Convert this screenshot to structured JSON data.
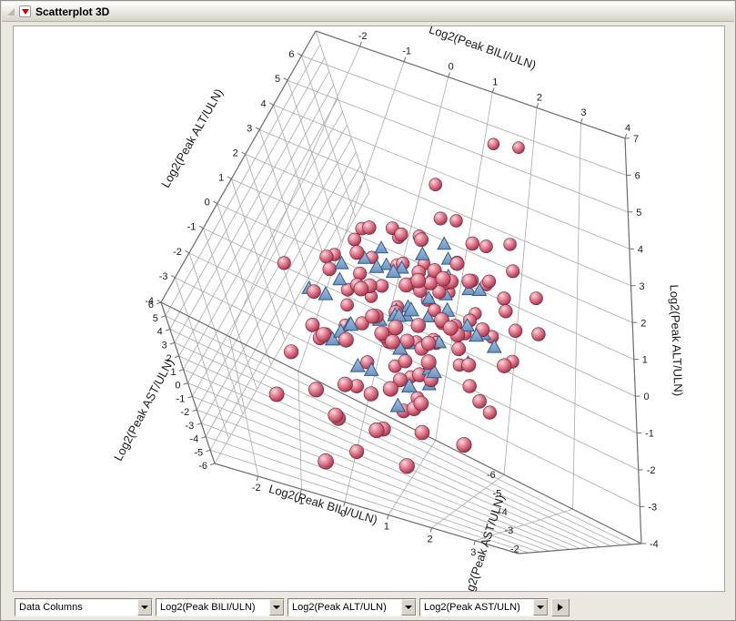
{
  "app": {
    "title": "Scatterplot 3D"
  },
  "controls": {
    "data_columns_label": "Data Columns",
    "x_select": "Log2(Peak BILI/ULN)",
    "y_select": "Log2(Peak ALT/ULN)",
    "z_select": "Log2(Peak AST/ULN)",
    "advance_icon": "right-arrow-icon",
    "dropdown_icon": "chevron-down-icon"
  },
  "colors": {
    "sphere": "#c95d72",
    "triangle": "#7da0c8",
    "grid": "#a9a9a9",
    "edge": "#6e6e6e",
    "accent_red": "#cc0000",
    "window_bg": "#ebe8e1"
  },
  "chart_data": {
    "type": "scatter",
    "subtype": "scatter3d",
    "axes": {
      "bili": {
        "label": "Log2(Peak BILI/ULN)",
        "range": [
          -3,
          4
        ],
        "ticks_top": [
          "-2",
          "-1",
          "0",
          "1",
          "2",
          "3",
          "4"
        ],
        "ticks_bottom": [
          "-2",
          "-1",
          "0",
          "1",
          "2",
          "3"
        ]
      },
      "alt": {
        "label": "Log2(Peak ALT/ULN)",
        "range": [
          -4,
          7
        ],
        "ticks_left": [
          "6",
          "5",
          "4",
          "3",
          "2",
          "1",
          "0",
          "-1",
          "-2",
          "-3",
          "-4"
        ],
        "ticks_right": [
          "7",
          "6",
          "5",
          "4",
          "3",
          "2",
          "1",
          "0",
          "-1",
          "-2",
          "-3",
          "-4"
        ]
      },
      "ast": {
        "label": "Log2(Peak AST/ULN)",
        "range": [
          -6,
          6
        ],
        "ticks_left": [
          "6",
          "5",
          "4",
          "3",
          "2",
          "1",
          "0",
          "-1",
          "-2",
          "-3",
          "-4",
          "-5",
          "-6"
        ],
        "ticks_bottom_right": [
          "-6",
          "-5",
          "-4",
          "-3",
          "-2"
        ]
      }
    },
    "grid": true,
    "series": [
      {
        "name": "spheres",
        "marker": "sphere",
        "color": "#c95d72",
        "points": [
          [
            -0.3,
            0.8,
            -1.2
          ],
          [
            0.5,
            1.6,
            0.4
          ],
          [
            1.2,
            -0.4,
            -2.1
          ],
          [
            -1.1,
            2.2,
            1.5
          ],
          [
            0.8,
            0.1,
            -0.6
          ],
          [
            1.6,
            1.1,
            0.9
          ],
          [
            -0.6,
            -1.2,
            -2.8
          ],
          [
            0.2,
            2.8,
            2.2
          ],
          [
            1.0,
            0.6,
            -1.8
          ],
          [
            -1.5,
            1.4,
            0.2
          ],
          [
            0.4,
            -0.8,
            -3.2
          ],
          [
            1.9,
            2.4,
            1.1
          ],
          [
            -0.2,
            3.1,
            0.6
          ],
          [
            0.9,
            -1.6,
            -1.4
          ],
          [
            1.4,
            0.3,
            2.6
          ],
          [
            -0.9,
            1.9,
            -2.4
          ],
          [
            0.1,
            0.5,
            1.8
          ],
          [
            2.1,
            1.3,
            -0.9
          ],
          [
            -1.3,
            -0.5,
            -1.1
          ],
          [
            0.7,
            2.0,
            0.1
          ],
          [
            1.1,
            -1.1,
            -2.6
          ],
          [
            -0.4,
            0.2,
            2.9
          ],
          [
            1.7,
            3.3,
            1.6
          ],
          [
            0.3,
            -2.1,
            -3.6
          ],
          [
            -0.8,
            1.0,
            0.8
          ],
          [
            1.3,
            2.6,
            -1.6
          ],
          [
            0.6,
            -0.2,
            1.2
          ],
          [
            -1.7,
            0.7,
            -0.4
          ],
          [
            2.4,
            1.8,
            0.5
          ],
          [
            0.0,
            -1.4,
            -2.2
          ],
          [
            0.9,
            3.6,
            2.4
          ],
          [
            -0.5,
            -2.6,
            -1.9
          ],
          [
            1.5,
            0.9,
            3.1
          ],
          [
            0.2,
            1.2,
            -3.4
          ],
          [
            -1.0,
            2.5,
            1.9
          ],
          [
            1.8,
            -0.7,
            0.3
          ],
          [
            0.5,
            0.4,
            -1.5
          ],
          [
            -0.1,
            1.7,
            2.1
          ],
          [
            1.2,
            2.9,
            -2.9
          ],
          [
            0.8,
            -1.9,
            1.4
          ],
          [
            -1.4,
            0.1,
            -2.5
          ],
          [
            2.0,
            0.7,
            1.7
          ],
          [
            0.4,
            2.3,
            -0.2
          ],
          [
            -0.7,
            -0.9,
            2.5
          ],
          [
            1.6,
            1.5,
            -3.1
          ],
          [
            0.1,
            -0.3,
            0.9
          ],
          [
            -1.2,
            2.7,
            -1.3
          ],
          [
            2.2,
            -1.3,
            0.6
          ],
          [
            0.6,
            0.8,
            2.8
          ],
          [
            -0.3,
            -1.7,
            -0.8
          ],
          [
            1.0,
            1.9,
            1.3
          ],
          [
            0.3,
            3.4,
            -0.5
          ],
          [
            -0.9,
            0.3,
            -3.0
          ],
          [
            1.4,
            -0.6,
            2.2
          ],
          [
            0.7,
            1.1,
            -2.0
          ],
          [
            -1.6,
            1.6,
            0.7
          ],
          [
            1.9,
            0.2,
            -1.2
          ],
          [
            0.0,
            2.1,
            1.0
          ],
          [
            -0.6,
            -2.3,
            -2.7
          ],
          [
            1.1,
            0.9,
            0.2
          ],
          [
            0.5,
            -1.0,
            -0.9
          ],
          [
            -0.2,
            2.4,
            2.7
          ],
          [
            1.7,
            1.2,
            -2.3
          ],
          [
            0.9,
            0.0,
            1.5
          ],
          [
            -1.1,
            -0.8,
            0.4
          ],
          [
            1.3,
            3.0,
            -0.7
          ],
          [
            0.2,
            0.6,
            -2.9
          ],
          [
            -0.8,
            1.3,
            1.1
          ],
          [
            2.3,
            2.1,
            0.8
          ],
          [
            0.6,
            -1.5,
            2.0
          ],
          [
            -0.4,
            0.9,
            -1.7
          ],
          [
            1.5,
            2.2,
            1.4
          ],
          [
            0.1,
            -0.1,
            -0.3
          ],
          [
            -1.8,
            -1.1,
            -1.6
          ],
          [
            1.0,
            1.4,
            2.3
          ],
          [
            0.8,
            2.7,
            -1.1
          ],
          [
            -0.5,
            0.0,
            0.3
          ],
          [
            1.2,
            -2.0,
            -2.4
          ],
          [
            0.4,
            1.8,
            3.0
          ],
          [
            -1.0,
            3.2,
            0.0
          ],
          [
            1.6,
            0.5,
            -0.8
          ],
          [
            0.3,
            -1.3,
            1.7
          ],
          [
            -0.7,
            2.0,
            -2.2
          ],
          [
            2.5,
            0.3,
            1.2
          ],
          [
            0.0,
            0.2,
            -1.0
          ],
          [
            0.9,
            1.7,
            0.6
          ],
          [
            -1.3,
            1.2,
            2.4
          ],
          [
            1.8,
            2.8,
            -1.9
          ],
          [
            0.5,
            -0.6,
            0.0
          ],
          [
            -0.1,
            0.7,
            -2.6
          ],
          [
            1.1,
            2.5,
            1.8
          ],
          [
            0.7,
            -1.8,
            -1.3
          ],
          [
            -0.9,
            0.5,
            1.6
          ],
          [
            1.4,
            1.0,
            -0.1
          ],
          [
            0.2,
            2.2,
            -1.8
          ],
          [
            -0.6,
            1.5,
            2.6
          ],
          [
            2.1,
            -0.9,
            -0.4
          ],
          [
            0.8,
            0.8,
            1.9
          ],
          [
            -0.2,
            -1.2,
            0.5
          ],
          [
            1.3,
            1.6,
            -2.7
          ],
          [
            0.6,
            3.8,
            1.2
          ],
          [
            -1.5,
            -0.3,
            -0.7
          ],
          [
            1.0,
            0.1,
            0.8
          ],
          [
            0.4,
            -2.4,
            -2.0
          ],
          [
            -0.3,
            1.1,
            1.3
          ],
          [
            1.7,
            2.0,
            2.5
          ],
          [
            0.1,
            0.9,
            -0.4
          ],
          [
            -1.2,
            -1.5,
            -3.3
          ],
          [
            2.7,
            1.4,
            0.1
          ],
          [
            0.5,
            2.6,
            -2.5
          ],
          [
            -0.8,
            -0.1,
            2.0
          ],
          [
            1.5,
            3.5,
            0.4
          ],
          [
            0.9,
            -0.5,
            -1.5
          ],
          [
            -0.4,
            2.9,
            1.7
          ],
          [
            1.2,
            0.4,
            -3.5
          ],
          [
            0.3,
            1.3,
            2.2
          ],
          [
            2.4,
            2.9,
            1.2
          ],
          [
            2.1,
            3.4,
            2.6
          ],
          [
            1.3,
            5.8,
            4.5
          ],
          [
            1.9,
            6.0,
            4.2
          ],
          [
            0.3,
            4.6,
            2.0
          ],
          [
            2.8,
            0.6,
            -1.8
          ],
          [
            3.2,
            1.5,
            0.2
          ],
          [
            -2.3,
            0.8,
            1.0
          ],
          [
            -0.6,
            -3.3,
            -4.6
          ],
          [
            1.1,
            -2.8,
            -4.0
          ],
          [
            2.2,
            -1.8,
            -3.2
          ],
          [
            -1.9,
            -2.2,
            -2.9
          ],
          [
            0.0,
            -3.6,
            -1.2
          ],
          [
            2.9,
            2.3,
            1.5
          ]
        ]
      },
      {
        "name": "triangles",
        "marker": "triangle",
        "color": "#7da0c8",
        "points": [
          [
            -0.2,
            0.6,
            -0.8
          ],
          [
            0.7,
            1.4,
            0.6
          ],
          [
            1.1,
            -0.2,
            -1.7
          ],
          [
            -0.8,
            1.8,
            1.2
          ],
          [
            0.4,
            0.3,
            -2.3
          ],
          [
            1.5,
            2.0,
            0.9
          ],
          [
            -0.4,
            -0.9,
            -1.4
          ],
          [
            0.9,
            2.5,
            1.8
          ],
          [
            0.1,
            0.9,
            -0.2
          ],
          [
            -1.2,
            1.1,
            0.4
          ],
          [
            1.3,
            0.0,
            -2.8
          ],
          [
            0.6,
            1.7,
            2.1
          ],
          [
            -0.6,
            2.3,
            -1.0
          ],
          [
            1.0,
            -1.2,
            0.7
          ],
          [
            0.3,
            0.7,
            1.5
          ],
          [
            -1.0,
            0.2,
            -2.0
          ],
          [
            1.7,
            1.2,
            -0.5
          ],
          [
            0.0,
            2.0,
            0.8
          ],
          [
            0.8,
            -0.6,
            -3.0
          ],
          [
            -0.3,
            1.5,
            2.4
          ],
          [
            1.2,
            2.7,
            -1.5
          ],
          [
            0.5,
            -0.1,
            0.3
          ],
          [
            -1.5,
            0.9,
            -0.9
          ],
          [
            1.9,
            0.8,
            1.1
          ],
          [
            0.2,
            1.2,
            -1.9
          ],
          [
            -0.7,
            -0.4,
            1.0
          ],
          [
            1.4,
            1.9,
            -2.6
          ],
          [
            0.7,
            0.5,
            2.0
          ],
          [
            -0.1,
            -1.1,
            -0.6
          ],
          [
            1.0,
            1.5,
            1.4
          ],
          [
            0.4,
            2.9,
            -0.3
          ],
          [
            -0.9,
            0.8,
            -2.9
          ],
          [
            1.6,
            -0.3,
            1.6
          ],
          [
            0.1,
            1.0,
            -1.2
          ],
          [
            -0.5,
            2.1,
            1.9
          ],
          [
            1.1,
            0.3,
            0.1
          ],
          [
            0.6,
            -1.5,
            -2.2
          ],
          [
            -1.3,
            1.7,
            0.2
          ],
          [
            2.0,
            1.1,
            -1.1
          ],
          [
            0.3,
            0.1,
            2.7
          ],
          [
            -0.2,
            2.6,
            -2.1
          ],
          [
            0.9,
            -0.8,
            1.2
          ],
          [
            1.8,
            2.2,
            0.3
          ],
          [
            -1.1,
            -0.2,
            -1.8
          ],
          [
            0.5,
            1.8,
            -3.2
          ],
          [
            2.4,
            0.9,
            -0.9
          ],
          [
            -1.7,
            0.4,
            0.6
          ],
          [
            0.8,
            3.1,
            1.0
          ]
        ]
      }
    ]
  }
}
